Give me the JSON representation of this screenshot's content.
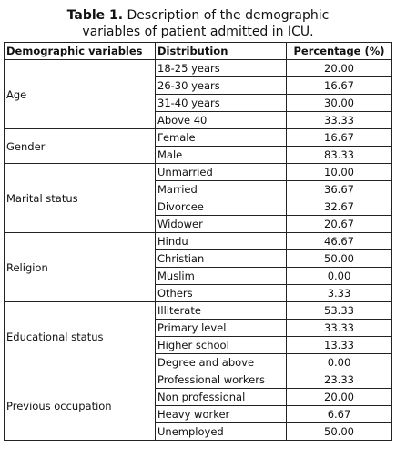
{
  "caption": {
    "label": "Table 1.",
    "text": " Description of the demographic",
    "line2": "variables of patient admitted in ICU."
  },
  "headers": [
    "Demographic variables",
    "Distribution",
    "Percentage (%)"
  ],
  "groups": [
    {
      "variable": "Age",
      "rows": [
        {
          "distribution": "18-25 years",
          "percentage": "20.00"
        },
        {
          "distribution": "26-30 years",
          "percentage": "16.67"
        },
        {
          "distribution": "31-40 years",
          "percentage": "30.00"
        },
        {
          "distribution": "Above 40",
          "percentage": "33.33"
        }
      ]
    },
    {
      "variable": "Gender",
      "rows": [
        {
          "distribution": "Female",
          "percentage": "16.67"
        },
        {
          "distribution": "Male",
          "percentage": "83.33"
        }
      ]
    },
    {
      "variable": "Marital status",
      "rows": [
        {
          "distribution": "Unmarried",
          "percentage": "10.00"
        },
        {
          "distribution": "Married",
          "percentage": "36.67"
        },
        {
          "distribution": "Divorcee",
          "percentage": "32.67"
        },
        {
          "distribution": "Widower",
          "percentage": "20.67"
        }
      ]
    },
    {
      "variable": "Religion",
      "rows": [
        {
          "distribution": "Hindu",
          "percentage": "46.67"
        },
        {
          "distribution": "Christian",
          "percentage": "50.00"
        },
        {
          "distribution": "Muslim",
          "percentage": "0.00"
        },
        {
          "distribution": "Others",
          "percentage": "3.33"
        }
      ]
    },
    {
      "variable": "Educational status",
      "rows": [
        {
          "distribution": "Illiterate",
          "percentage": "53.33"
        },
        {
          "distribution": "Primary level",
          "percentage": "33.33"
        },
        {
          "distribution": "Higher school",
          "percentage": "13.33"
        },
        {
          "distribution": "Degree and above",
          "percentage": "0.00"
        }
      ]
    },
    {
      "variable": "Previous occupation",
      "rows": [
        {
          "distribution": "Professional workers",
          "percentage": "23.33"
        },
        {
          "distribution": "Non professional",
          "percentage": "20.00"
        },
        {
          "distribution": "Heavy worker",
          "percentage": "6.67"
        },
        {
          "distribution": "Unemployed",
          "percentage": "50.00"
        }
      ]
    }
  ]
}
